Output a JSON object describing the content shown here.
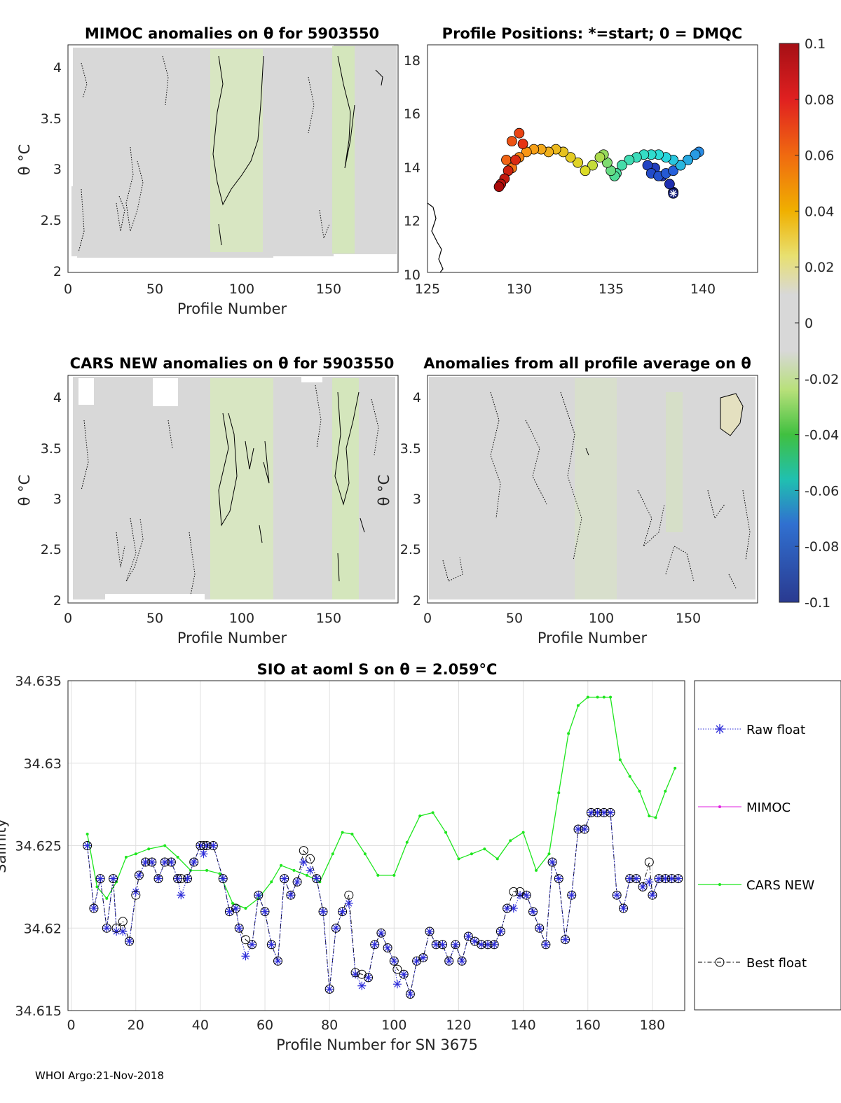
{
  "footer": "WHOI Argo:21-Nov-2018",
  "colors": {
    "panel_fill": "#d8d8d8",
    "anomaly_green": "#d4e8b4",
    "raw": "#2b2bd8",
    "mimoc": "#e020e0",
    "cars": "#1ee61e",
    "best": "#000000",
    "grid": "#e0e0e0"
  },
  "panels": {
    "mimoc": {
      "title": "MIMOC anomalies on θ  for 5903550",
      "ylabel": "θ °C",
      "xlabel": "Profile Number",
      "xticks": [
        "0",
        "50",
        "100",
        "150"
      ],
      "yticks": [
        "2",
        "2.5",
        "3",
        "3.5",
        "4"
      ]
    },
    "positions": {
      "title": "Profile Positions: *=start; 0 = DMQC",
      "xticks": [
        "125",
        "130",
        "135",
        "140"
      ],
      "yticks": [
        "10",
        "12",
        "14",
        "16",
        "18"
      ]
    },
    "cars": {
      "title": "CARS NEW anomalies on θ for 5903550",
      "ylabel": "θ °C",
      "xlabel": "Profile Number",
      "xticks": [
        "0",
        "50",
        "100",
        "150"
      ],
      "yticks": [
        "2",
        "2.5",
        "3",
        "3.5",
        "4"
      ]
    },
    "allavg": {
      "title": "Anomalies from all profile average on θ",
      "ylabel": "θ °C",
      "xlabel": "Profile Number",
      "xticks": [
        "0",
        "50",
        "100",
        "150"
      ],
      "yticks": [
        "2",
        "2.5",
        "3",
        "3.5",
        "4"
      ]
    }
  },
  "colorbar": {
    "ticks": [
      "0.1",
      "0.08",
      "0.06",
      "0.04",
      "0.02",
      "0",
      "-0.02",
      "-0.04",
      "-0.06",
      "-0.08",
      "-0.1"
    ]
  },
  "chart_data": [
    {
      "type": "heatmap",
      "title": "MIMOC anomalies on θ  for 5903550",
      "xlabel": "Profile Number",
      "ylabel": "θ °C",
      "xlim": [
        0,
        190
      ],
      "ylim": [
        1.95,
        4.2
      ],
      "note": "mostly near-zero anomalies (grey) with slight negative (light green) bands near profiles 80-110 and 155-165"
    },
    {
      "type": "scatter",
      "title": "Profile Positions: *=start; 0 = DMQC",
      "xlabel": "Longitude",
      "ylabel": "Latitude",
      "xlim": [
        125,
        143
      ],
      "ylim": [
        10,
        18.5
      ],
      "track_lon": [
        138.4,
        138.2,
        137.8,
        137.4,
        137.0,
        137.2,
        137.6,
        138.0,
        138.4,
        138.8,
        139.2,
        139.6,
        139.8,
        139.6,
        139.2,
        138.8,
        138.4,
        138.0,
        137.6,
        137.2,
        136.8,
        136.4,
        136.0,
        135.6,
        135.3,
        135.2,
        135.0,
        134.8,
        134.6,
        134.4,
        134.0,
        133.6,
        133.2,
        132.8,
        132.4,
        132.0,
        131.6,
        131.2,
        130.8,
        130.4,
        130.0,
        129.6,
        129.3,
        129.6,
        130.0,
        130.2,
        129.8,
        129.4,
        129.2,
        129.0,
        128.9
      ],
      "track_lat": [
        13.0,
        13.3,
        13.6,
        13.9,
        14.0,
        13.7,
        13.6,
        13.7,
        13.8,
        14.0,
        14.2,
        14.4,
        14.5,
        14.4,
        14.2,
        14.0,
        14.2,
        14.3,
        14.4,
        14.4,
        14.4,
        14.3,
        14.2,
        14.0,
        13.7,
        13.6,
        13.8,
        14.1,
        14.4,
        14.3,
        14.0,
        13.8,
        14.1,
        14.3,
        14.5,
        14.6,
        14.5,
        14.6,
        14.6,
        14.5,
        14.3,
        13.9,
        14.2,
        14.9,
        15.2,
        14.8,
        14.2,
        13.8,
        13.5,
        13.3,
        13.2
      ],
      "start_marker": [
        138.4,
        12.95
      ]
    },
    {
      "type": "heatmap",
      "title": "CARS NEW anomalies on θ for 5903550",
      "xlabel": "Profile Number",
      "ylabel": "θ °C",
      "xlim": [
        0,
        190
      ],
      "ylim": [
        1.95,
        4.2
      ]
    },
    {
      "type": "heatmap",
      "title": "Anomalies from all profile average on θ",
      "xlabel": "Profile Number",
      "ylabel": "θ °C",
      "xlim": [
        0,
        190
      ],
      "ylim": [
        1.95,
        4.2
      ]
    },
    {
      "type": "line",
      "title": "SIO at aoml S on θ = 2.059°C",
      "xlabel": "Profile Number for SN 3675",
      "ylabel": "Salinity",
      "xlim": [
        -1,
        190
      ],
      "ylim": [
        34.615,
        34.635
      ],
      "xticks": [
        "0",
        "20",
        "40",
        "60",
        "80",
        "100",
        "120",
        "140",
        "160",
        "180"
      ],
      "yticks": [
        "34.615",
        "34.62",
        "34.625",
        "34.63",
        "34.635"
      ],
      "grid": true,
      "legend_position": "right",
      "series": [
        {
          "name": "Raw float",
          "x": [
            5,
            7,
            9,
            11,
            13,
            14,
            16,
            18,
            20,
            21,
            23,
            25,
            27,
            29,
            31,
            33,
            34,
            36,
            38,
            40,
            41,
            42,
            44,
            47,
            49,
            51,
            52,
            54,
            56,
            58,
            60,
            62,
            64,
            66,
            68,
            70,
            72,
            74,
            76,
            78,
            80,
            82,
            84,
            86,
            88,
            90,
            92,
            94,
            96,
            98,
            100,
            101,
            103,
            105,
            107,
            109,
            111,
            113,
            115,
            117,
            119,
            121,
            123,
            125,
            127,
            129,
            131,
            133,
            135,
            137,
            139,
            141,
            143,
            145,
            147,
            149,
            151,
            153,
            155,
            157,
            159,
            161,
            163,
            165,
            167,
            169,
            171,
            173,
            175,
            177,
            179,
            180,
            182,
            184,
            186,
            188
          ],
          "y": [
            34.625,
            34.6212,
            34.623,
            34.62,
            34.623,
            34.6198,
            34.6198,
            34.6192,
            34.6222,
            34.6232,
            34.624,
            34.624,
            34.623,
            34.624,
            34.624,
            34.623,
            34.622,
            34.623,
            34.624,
            34.625,
            34.6245,
            34.625,
            34.625,
            34.623,
            34.621,
            34.6212,
            34.62,
            34.6183,
            34.619,
            34.622,
            34.621,
            34.619,
            34.618,
            34.623,
            34.622,
            34.6228,
            34.624,
            34.6235,
            34.623,
            34.621,
            34.6163,
            34.62,
            34.621,
            34.6215,
            34.6172,
            34.6165,
            34.617,
            34.619,
            34.6197,
            34.6188,
            34.618,
            34.6166,
            34.6172,
            34.616,
            34.618,
            34.6182,
            34.6198,
            34.619,
            34.619,
            34.618,
            34.619,
            34.618,
            34.6195,
            34.6192,
            34.619,
            34.619,
            34.619,
            34.6198,
            34.6212,
            34.6212,
            34.622,
            34.622,
            34.621,
            34.62,
            34.619,
            34.624,
            34.623,
            34.6193,
            34.622,
            34.626,
            34.626,
            34.627,
            34.627,
            34.627,
            34.627,
            34.622,
            34.6212,
            34.623,
            34.623,
            34.6225,
            34.6228,
            34.622,
            34.623,
            34.623,
            34.623,
            34.623
          ],
          "marker": "asterisk"
        },
        {
          "name": "MIMOC",
          "x": [],
          "y": [],
          "marker": "point"
        },
        {
          "name": "CARS NEW",
          "x": [
            5,
            8,
            11,
            14,
            17,
            20,
            24,
            29,
            33,
            37,
            42,
            46,
            50,
            54,
            58,
            62,
            65,
            69,
            73,
            77,
            81,
            84,
            87,
            91,
            95,
            100,
            104,
            108,
            112,
            116,
            120,
            124,
            128,
            132,
            136,
            140,
            144,
            148,
            151,
            154,
            157,
            160,
            163,
            165,
            167,
            170,
            173,
            176,
            179,
            181,
            184,
            187
          ],
          "y": [
            34.6257,
            34.6225,
            34.6218,
            34.6228,
            34.6243,
            34.6245,
            34.6248,
            34.625,
            34.6243,
            34.6235,
            34.6235,
            34.6233,
            34.6215,
            34.6212,
            34.6218,
            34.6228,
            34.6238,
            34.6235,
            34.6232,
            34.6228,
            34.6245,
            34.6258,
            34.6257,
            34.6245,
            34.6232,
            34.6232,
            34.6252,
            34.6268,
            34.627,
            34.6258,
            34.6242,
            34.6245,
            34.6248,
            34.6242,
            34.6253,
            34.6258,
            34.6235,
            34.6245,
            34.6282,
            34.6318,
            34.6335,
            34.634,
            34.634,
            34.634,
            34.634,
            34.6302,
            34.6292,
            34.6283,
            34.6268,
            34.6267,
            34.6283,
            34.6297
          ],
          "marker": "point"
        },
        {
          "name": "Best float",
          "x": [
            5,
            7,
            9,
            11,
            13,
            14,
            16,
            18,
            20,
            21,
            23,
            25,
            27,
            29,
            31,
            33,
            34,
            36,
            38,
            40,
            41,
            42,
            44,
            47,
            49,
            51,
            52,
            54,
            56,
            58,
            60,
            62,
            64,
            66,
            68,
            70,
            72,
            74,
            76,
            78,
            80,
            82,
            84,
            86,
            88,
            90,
            92,
            94,
            96,
            98,
            100,
            101,
            103,
            105,
            107,
            109,
            111,
            113,
            115,
            117,
            119,
            121,
            123,
            125,
            127,
            129,
            131,
            133,
            135,
            137,
            139,
            141,
            143,
            145,
            147,
            149,
            151,
            153,
            155,
            157,
            159,
            161,
            163,
            165,
            167,
            169,
            171,
            173,
            175,
            177,
            179,
            180,
            182,
            184,
            186,
            188
          ],
          "y": [
            34.625,
            34.6212,
            34.623,
            34.62,
            34.623,
            34.62,
            34.6204,
            34.6192,
            34.622,
            34.6232,
            34.624,
            34.624,
            34.623,
            34.624,
            34.624,
            34.623,
            34.623,
            34.623,
            34.624,
            34.625,
            34.625,
            34.625,
            34.625,
            34.623,
            34.621,
            34.6212,
            34.62,
            34.6193,
            34.619,
            34.622,
            34.621,
            34.619,
            34.618,
            34.623,
            34.622,
            34.6228,
            34.6247,
            34.6242,
            34.623,
            34.621,
            34.6163,
            34.62,
            34.621,
            34.622,
            34.6173,
            34.6172,
            34.617,
            34.619,
            34.6197,
            34.6188,
            34.618,
            34.6175,
            34.6172,
            34.616,
            34.618,
            34.6182,
            34.6198,
            34.619,
            34.619,
            34.618,
            34.619,
            34.618,
            34.6195,
            34.6192,
            34.619,
            34.619,
            34.619,
            34.6198,
            34.6212,
            34.6222,
            34.6222,
            34.622,
            34.621,
            34.62,
            34.619,
            34.624,
            34.623,
            34.6193,
            34.622,
            34.626,
            34.626,
            34.627,
            34.627,
            34.627,
            34.627,
            34.622,
            34.6212,
            34.623,
            34.623,
            34.6225,
            34.624,
            34.622,
            34.623,
            34.623,
            34.623,
            34.623
          ],
          "marker": "circle"
        }
      ]
    }
  ]
}
